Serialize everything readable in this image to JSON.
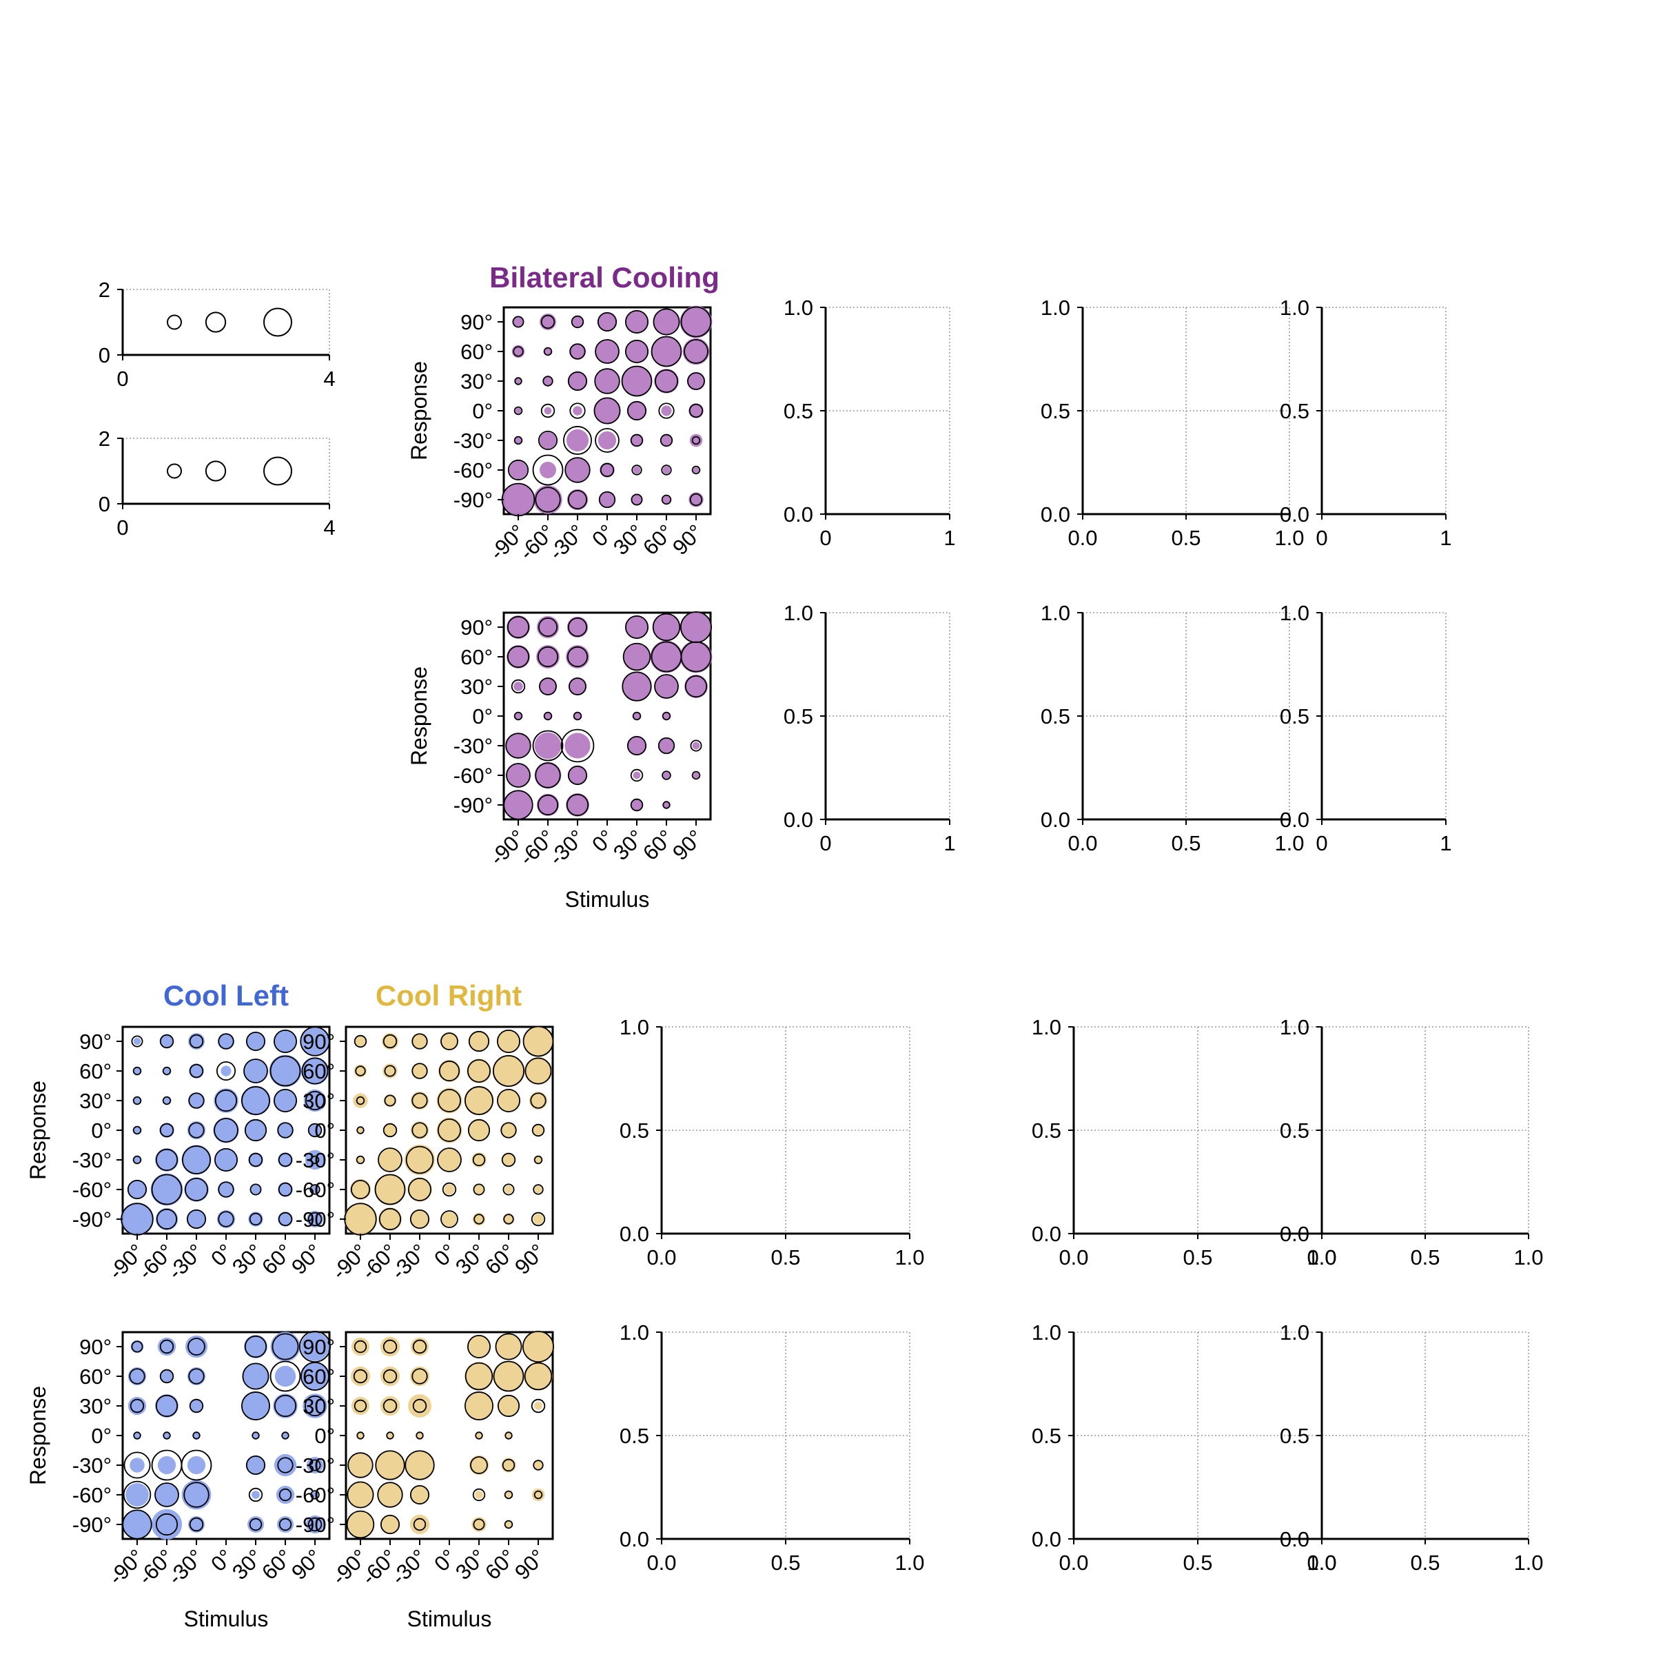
{
  "colors": {
    "bilateral": "#7b2a8a",
    "bilateral_fill": "#b57cc2",
    "cool_left": "#4167d6",
    "cool_left_fill": "#8fa6ec",
    "cool_right": "#e0b840",
    "cool_right_fill": "#ecd190",
    "grid": "#9a9a9a"
  },
  "titles": {
    "bilateral": "Bilateral Cooling",
    "cool_left": "Cool Left",
    "cool_right": "Cool Right"
  },
  "axis_labels": {
    "response": "Response",
    "stimulus": "Stimulus"
  },
  "angle_ticks": [
    "-90°",
    "-60°",
    "-30°",
    "0°",
    "30°",
    "60°",
    "90°"
  ],
  "chart_data": [
    {
      "id": "legend-top",
      "type": "scatter",
      "xlim": [
        0,
        4
      ],
      "ylim": [
        0,
        2
      ],
      "xticks": [
        "0",
        "4"
      ],
      "yticks": [
        "0",
        "2"
      ],
      "x": [
        1,
        1.8,
        3
      ],
      "y": [
        1,
        1,
        1
      ],
      "sizes": [
        0.25,
        0.5,
        1.0
      ]
    },
    {
      "id": "legend-bottom",
      "type": "scatter",
      "xlim": [
        0,
        4
      ],
      "ylim": [
        0,
        2
      ],
      "xticks": [
        "0",
        "4"
      ],
      "yticks": [
        "0",
        "2"
      ],
      "x": [
        1,
        1.8,
        3
      ],
      "y": [
        1,
        1,
        1
      ],
      "sizes": [
        0.25,
        0.5,
        1.0
      ]
    },
    {
      "id": "bilateral-1",
      "type": "scatter",
      "title": "Bilateral Cooling",
      "ylabel": "Response",
      "xlabel": "",
      "color": "bilateral",
      "x": [
        "-90°",
        "-60°",
        "-30°",
        "0°",
        "30°",
        "60°",
        "90°"
      ],
      "y": [
        "-90°",
        "-60°",
        "-30°",
        "0°",
        "30°",
        "60°",
        "90°"
      ],
      "cooled": [
        [
          1.0,
          0.75,
          0.4,
          0.25,
          0.12,
          0.08,
          0.2
        ],
        [
          0.3,
          0.25,
          0.5,
          0.2,
          0.05,
          0.05,
          0.03
        ],
        [
          0.05,
          0.25,
          0.45,
          0.3,
          0.15,
          0.1,
          0.15
        ],
        [
          0.03,
          0.05,
          0.08,
          0.6,
          0.35,
          0.1,
          0.2
        ],
        [
          0.03,
          0.1,
          0.35,
          0.5,
          0.8,
          0.55,
          0.3
        ],
        [
          0.15,
          0.05,
          0.25,
          0.5,
          0.5,
          0.75,
          0.65
        ],
        [
          0.1,
          0.25,
          0.1,
          0.35,
          0.5,
          0.65,
          0.95
        ]
      ],
      "control": [
        [
          0.95,
          0.55,
          0.3,
          0.22,
          0.1,
          0.07,
          0.12
        ],
        [
          0.35,
          0.8,
          0.55,
          0.15,
          0.08,
          0.08,
          0.05
        ],
        [
          0.05,
          0.3,
          0.7,
          0.5,
          0.12,
          0.12,
          0.05
        ],
        [
          0.05,
          0.15,
          0.2,
          0.6,
          0.3,
          0.2,
          0.15
        ],
        [
          0.04,
          0.08,
          0.3,
          0.55,
          0.8,
          0.45,
          0.25
        ],
        [
          0.08,
          0.05,
          0.2,
          0.5,
          0.45,
          0.8,
          0.5
        ],
        [
          0.1,
          0.15,
          0.12,
          0.3,
          0.45,
          0.6,
          0.8
        ]
      ]
    },
    {
      "id": "bilateral-2",
      "type": "scatter",
      "title": "",
      "ylabel": "Response",
      "xlabel": "Stimulus",
      "color": "bilateral",
      "x": [
        "-90°",
        "-60°",
        "-30°",
        "0°",
        "30°",
        "60°",
        "90°"
      ],
      "y": [
        "-90°",
        "-60°",
        "-30°",
        "0°",
        "30°",
        "60°",
        "90°"
      ],
      "cooled": [
        [
          0.8,
          0.45,
          0.5,
          0,
          0.15,
          0.03,
          0
        ],
        [
          0.55,
          0.65,
          0.35,
          0,
          0.05,
          0.04,
          0.03
        ],
        [
          0.55,
          0.65,
          0.6,
          0,
          0.35,
          0.2,
          0.05
        ],
        [
          0.05,
          0.04,
          0.04,
          0,
          0.04,
          0.04,
          0
        ],
        [
          0.08,
          0.3,
          0.3,
          0,
          0.8,
          0.55,
          0.5
        ],
        [
          0.5,
          0.5,
          0.5,
          0,
          0.6,
          0.95,
          0.95
        ],
        [
          0.5,
          0.45,
          0.4,
          0,
          0.5,
          0.7,
          0.8
        ]
      ],
      "control": [
        [
          0.75,
          0.35,
          0.4,
          0,
          0.12,
          0.04,
          0
        ],
        [
          0.5,
          0.55,
          0.3,
          0,
          0.12,
          0.06,
          0.05
        ],
        [
          0.55,
          0.8,
          0.95,
          0,
          0.3,
          0.22,
          0.1
        ],
        [
          0.05,
          0.05,
          0.05,
          0,
          0.05,
          0.05,
          0
        ],
        [
          0.15,
          0.25,
          0.25,
          0,
          0.75,
          0.5,
          0.4
        ],
        [
          0.4,
          0.35,
          0.35,
          0,
          0.65,
          0.8,
          0.8
        ],
        [
          0.4,
          0.3,
          0.3,
          0,
          0.45,
          0.65,
          0.85
        ]
      ]
    },
    {
      "id": "cool-left-1",
      "type": "scatter",
      "title": "Cool Left",
      "ylabel": "Response",
      "xlabel": "",
      "color": "cool_left",
      "x": [
        "-90°",
        "-60°",
        "-30°",
        "0°",
        "30°",
        "60°",
        "90°"
      ],
      "y": [
        "-90°",
        "-60°",
        "-30°",
        "0°",
        "30°",
        "60°",
        "90°"
      ],
      "cooled": [
        [
          1.0,
          0.45,
          0.35,
          0.3,
          0.2,
          0.2,
          0.25
        ],
        [
          0.35,
          0.95,
          0.55,
          0.25,
          0.08,
          0.2,
          0.06
        ],
        [
          0.05,
          0.5,
          0.8,
          0.5,
          0.2,
          0.2,
          0.35
        ],
        [
          0.05,
          0.2,
          0.3,
          0.6,
          0.45,
          0.25,
          0.15
        ],
        [
          0.04,
          0.06,
          0.25,
          0.55,
          0.8,
          0.5,
          0.45
        ],
        [
          0.04,
          0.06,
          0.2,
          0.1,
          0.55,
          0.95,
          0.7
        ],
        [
          0.05,
          0.15,
          0.25,
          0.25,
          0.3,
          0.45,
          0.75
        ]
      ],
      "control": [
        [
          0.9,
          0.35,
          0.3,
          0.2,
          0.12,
          0.15,
          0.15
        ],
        [
          0.3,
          0.8,
          0.45,
          0.2,
          0.1,
          0.15,
          0.08
        ],
        [
          0.05,
          0.4,
          0.7,
          0.45,
          0.15,
          0.15,
          0.05
        ],
        [
          0.05,
          0.15,
          0.2,
          0.5,
          0.4,
          0.2,
          0.15
        ],
        [
          0.05,
          0.05,
          0.2,
          0.4,
          0.7,
          0.45,
          0.3
        ],
        [
          0.05,
          0.05,
          0.15,
          0.3,
          0.5,
          0.8,
          0.6
        ],
        [
          0.1,
          0.15,
          0.15,
          0.2,
          0.3,
          0.45,
          0.75
        ]
      ]
    },
    {
      "id": "cool-right-1",
      "type": "scatter",
      "title": "Cool Right",
      "ylabel": "",
      "xlabel": "",
      "color": "cool_right",
      "x": [
        "-90°",
        "-60°",
        "-30°",
        "0°",
        "30°",
        "60°",
        "90°"
      ],
      "y": [
        "-90°",
        "-60°",
        "-30°",
        "0°",
        "30°",
        "60°",
        "90°"
      ],
      "cooled": [
        [
          1.0,
          0.5,
          0.35,
          0.2,
          0.15,
          0.12,
          0.1
        ],
        [
          0.4,
          0.9,
          0.55,
          0.1,
          0.08,
          0.06,
          0.05
        ],
        [
          0.05,
          0.5,
          0.85,
          0.55,
          0.2,
          0.12,
          0.05
        ],
        [
          0.04,
          0.15,
          0.3,
          0.6,
          0.45,
          0.25,
          0.15
        ],
        [
          0.2,
          0.15,
          0.3,
          0.6,
          0.8,
          0.45,
          0.3
        ],
        [
          0.15,
          0.2,
          0.25,
          0.45,
          0.55,
          0.95,
          0.7
        ],
        [
          0.1,
          0.25,
          0.25,
          0.3,
          0.4,
          0.5,
          0.85
        ]
      ],
      "control": [
        [
          0.9,
          0.4,
          0.3,
          0.25,
          0.08,
          0.08,
          0.15
        ],
        [
          0.3,
          0.8,
          0.45,
          0.15,
          0.1,
          0.1,
          0.08
        ],
        [
          0.05,
          0.5,
          0.65,
          0.5,
          0.12,
          0.15,
          0.05
        ],
        [
          0.04,
          0.15,
          0.2,
          0.45,
          0.4,
          0.2,
          0.12
        ],
        [
          0.05,
          0.1,
          0.2,
          0.45,
          0.7,
          0.45,
          0.2
        ],
        [
          0.08,
          0.1,
          0.2,
          0.35,
          0.45,
          0.85,
          0.6
        ],
        [
          0.12,
          0.15,
          0.2,
          0.25,
          0.35,
          0.45,
          0.8
        ]
      ]
    },
    {
      "id": "cool-left-2",
      "type": "scatter",
      "title": "",
      "ylabel": "Response",
      "xlabel": "Stimulus",
      "color": "cool_left",
      "x": [
        "-90°",
        "-60°",
        "-30°",
        "0°",
        "30°",
        "60°",
        "90°"
      ],
      "y": [
        "-90°",
        "-60°",
        "-30°",
        "0°",
        "30°",
        "60°",
        "90°"
      ],
      "cooled": [
        [
          0.8,
          0.85,
          0.25,
          0,
          0.25,
          0.25,
          0.3
        ],
        [
          0.5,
          0.55,
          0.8,
          0,
          0.06,
          0.3,
          0.04
        ],
        [
          0.2,
          0.3,
          0.3,
          0,
          0.35,
          0.45,
          0.25
        ],
        [
          0.04,
          0.04,
          0.04,
          0,
          0.04,
          0.04,
          0
        ],
        [
          0.3,
          0.5,
          0.15,
          0,
          0.75,
          0.55,
          0.55
        ],
        [
          0.3,
          0.15,
          0.3,
          0,
          0.65,
          0.4,
          0.75
        ],
        [
          0.15,
          0.3,
          0.45,
          0,
          0.5,
          0.8,
          0.75
        ]
      ],
      "control": [
        [
          0.75,
          0.4,
          0.15,
          0,
          0.12,
          0.12,
          0.15
        ],
        [
          0.65,
          0.5,
          0.55,
          0,
          0.15,
          0.12,
          0.06
        ],
        [
          0.6,
          0.8,
          0.8,
          0,
          0.3,
          0.2,
          0.1
        ],
        [
          0.04,
          0.04,
          0.04,
          0,
          0.04,
          0.04,
          0
        ],
        [
          0.15,
          0.4,
          0.15,
          0,
          0.7,
          0.4,
          0.35
        ],
        [
          0.2,
          0.15,
          0.2,
          0,
          0.6,
          0.8,
          0.7
        ],
        [
          0.1,
          0.15,
          0.25,
          0,
          0.4,
          0.6,
          0.85
        ]
      ]
    },
    {
      "id": "cool-right-2",
      "type": "scatter",
      "title": "",
      "ylabel": "",
      "xlabel": "Stimulus",
      "color": "cool_right",
      "x": [
        "-90°",
        "-60°",
        "-30°",
        "0°",
        "30°",
        "60°",
        "90°"
      ],
      "y": [
        "-90°",
        "-60°",
        "-30°",
        "0°",
        "30°",
        "60°",
        "90°"
      ],
      "cooled": [
        [
          0.6,
          0.35,
          0.35,
          0,
          0.2,
          0.04,
          0
        ],
        [
          0.6,
          0.5,
          0.35,
          0,
          0.06,
          0.04,
          0.15
        ],
        [
          0.6,
          0.75,
          0.8,
          0,
          0.35,
          0.2,
          0.06
        ],
        [
          0.04,
          0.04,
          0.04,
          0,
          0.04,
          0.04,
          0
        ],
        [
          0.3,
          0.35,
          0.5,
          0,
          0.7,
          0.4,
          0.06
        ],
        [
          0.35,
          0.35,
          0.35,
          0,
          0.75,
          0.85,
          0.75
        ],
        [
          0.3,
          0.35,
          0.3,
          0,
          0.45,
          0.65,
          0.85
        ]
      ],
      "control": [
        [
          0.65,
          0.3,
          0.12,
          0,
          0.1,
          0.05,
          0
        ],
        [
          0.6,
          0.55,
          0.3,
          0,
          0.12,
          0.05,
          0.05
        ],
        [
          0.55,
          0.75,
          0.75,
          0,
          0.25,
          0.12,
          0.08
        ],
        [
          0.04,
          0.04,
          0.04,
          0,
          0.04,
          0.04,
          0
        ],
        [
          0.12,
          0.15,
          0.15,
          0,
          0.7,
          0.4,
          0.15
        ],
        [
          0.15,
          0.15,
          0.2,
          0,
          0.65,
          0.8,
          0.65
        ],
        [
          0.12,
          0.15,
          0.15,
          0,
          0.45,
          0.6,
          0.85
        ]
      ]
    },
    {
      "id": "empty-r1-c1",
      "type": "scatter",
      "xlim": [
        0,
        1
      ],
      "ylim": [
        0,
        1
      ],
      "xticks": [
        "0",
        "1"
      ],
      "yticks": [
        "0.0",
        "0.5",
        "1.0"
      ],
      "grid": true
    },
    {
      "id": "empty-r1-c2",
      "type": "scatter",
      "xlim": [
        0,
        1
      ],
      "ylim": [
        0,
        1
      ],
      "xticks": [
        "0.0",
        "0.5",
        "1.0"
      ],
      "yticks": [
        "0.0",
        "0.5",
        "1.0"
      ],
      "grid": true
    },
    {
      "id": "empty-r1-c3",
      "type": "scatter",
      "xlim": [
        0,
        1
      ],
      "ylim": [
        0,
        1
      ],
      "xticks": [
        "0",
        "1"
      ],
      "yticks": [
        "0.0",
        "0.5",
        "1.0"
      ],
      "grid": true
    },
    {
      "id": "empty-r2-c1",
      "type": "scatter",
      "xlim": [
        0,
        1
      ],
      "ylim": [
        0,
        1
      ],
      "xticks": [
        "0",
        "1"
      ],
      "yticks": [
        "0.0",
        "0.5",
        "1.0"
      ],
      "grid": true
    },
    {
      "id": "empty-r2-c2",
      "type": "scatter",
      "xlim": [
        0,
        1
      ],
      "ylim": [
        0,
        1
      ],
      "xticks": [
        "0.0",
        "0.5",
        "1.0"
      ],
      "yticks": [
        "0.0",
        "0.5",
        "1.0"
      ],
      "grid": true
    },
    {
      "id": "empty-r2-c3",
      "type": "scatter",
      "xlim": [
        0,
        1
      ],
      "ylim": [
        0,
        1
      ],
      "xticks": [
        "0",
        "1"
      ],
      "yticks": [
        "0.0",
        "0.5",
        "1.0"
      ],
      "grid": true
    },
    {
      "id": "empty-r3-c1",
      "type": "scatter",
      "xlim": [
        0,
        1
      ],
      "ylim": [
        0,
        1
      ],
      "xticks": [
        "0.0",
        "0.5",
        "1.0"
      ],
      "yticks": [
        "0.0",
        "0.5",
        "1.0"
      ],
      "grid": true
    },
    {
      "id": "empty-r3-c2",
      "type": "scatter",
      "xlim": [
        0,
        1
      ],
      "ylim": [
        0,
        1
      ],
      "xticks": [
        "0.0",
        "0.5",
        "1.0"
      ],
      "yticks": [
        "0.0",
        "0.5",
        "1.0"
      ],
      "grid": true
    },
    {
      "id": "empty-r3-c3",
      "type": "scatter",
      "xlim": [
        0,
        1
      ],
      "ylim": [
        0,
        1
      ],
      "xticks": [
        "0.0",
        "0.5",
        "1.0"
      ],
      "yticks": [
        "0.0",
        "0.5",
        "1.0"
      ],
      "grid": true
    },
    {
      "id": "empty-r4-c1",
      "type": "scatter",
      "xlim": [
        0,
        1
      ],
      "ylim": [
        0,
        1
      ],
      "xticks": [
        "0.0",
        "0.5",
        "1.0"
      ],
      "yticks": [
        "0.0",
        "0.5",
        "1.0"
      ],
      "grid": true
    },
    {
      "id": "empty-r4-c2",
      "type": "scatter",
      "xlim": [
        0,
        1
      ],
      "ylim": [
        0,
        1
      ],
      "xticks": [
        "0.0",
        "0.5",
        "1.0"
      ],
      "yticks": [
        "0.0",
        "0.5",
        "1.0"
      ],
      "grid": true
    },
    {
      "id": "empty-r4-c3",
      "type": "scatter",
      "xlim": [
        0,
        1
      ],
      "ylim": [
        0,
        1
      ],
      "xticks": [
        "0.0",
        "0.5",
        "1.0"
      ],
      "yticks": [
        "0.0",
        "0.5",
        "1.0"
      ],
      "grid": true
    }
  ]
}
